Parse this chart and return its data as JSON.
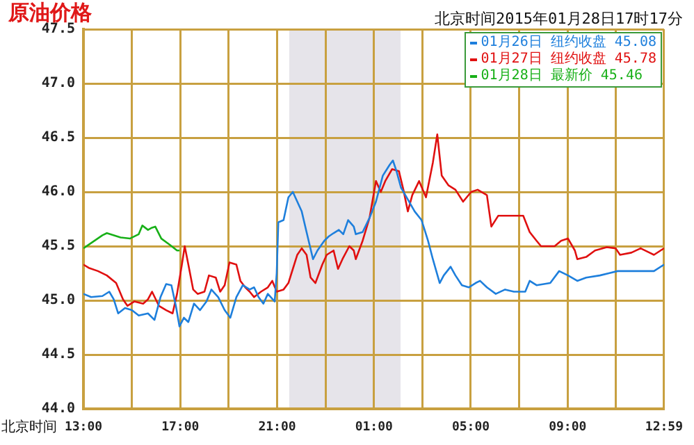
{
  "chart_data": {
    "type": "line",
    "title": "原油价格",
    "subtitle": "北京时间2015年01月28日17时17分",
    "xlabel": "北京时间",
    "xlim": [
      "2015-01-27T13:00",
      "2015-01-28T12:59"
    ],
    "xticks": [
      {
        "value": "2015-01-27T13:00",
        "label": "13:00"
      },
      {
        "value": "2015-01-27T15:00",
        "label": null
      },
      {
        "value": "2015-01-27T17:00",
        "label": "17:00"
      },
      {
        "value": "2015-01-27T19:00",
        "label": null
      },
      {
        "value": "2015-01-27T21:00",
        "label": "21:00"
      },
      {
        "value": "2015-01-27T23:00",
        "label": null
      },
      {
        "value": "2015-01-28T01:00",
        "label": "01:00"
      },
      {
        "value": "2015-01-28T03:00",
        "label": null
      },
      {
        "value": "2015-01-28T05:00",
        "label": "05:00"
      },
      {
        "value": "2015-01-28T07:00",
        "label": null
      },
      {
        "value": "2015-01-28T09:00",
        "label": "09:00"
      },
      {
        "value": "2015-01-28T11:00",
        "label": null
      },
      {
        "value": "2015-01-28T12:59",
        "label": "12:59"
      }
    ],
    "ylim": [
      44,
      47.5
    ],
    "yticks": [
      {
        "value": 44,
        "label": "44.0"
      },
      {
        "value": 44.5,
        "label": "44.5"
      },
      {
        "value": 45,
        "label": "45.0"
      },
      {
        "value": 45.5,
        "label": "45.5"
      },
      {
        "value": 46,
        "label": "46.0"
      },
      {
        "value": 46.5,
        "label": "46.5"
      },
      {
        "value": 47,
        "label": "47.0"
      },
      {
        "value": 47.5,
        "label": "47.5"
      }
    ],
    "grid": true,
    "legend": "top right",
    "marker": "none",
    "line_style": "solid",
    "bands": [
      {
        "axis": "x",
        "from": "2015-01-27T21:30",
        "to": "2015-01-28T02:06",
        "color": "#e6e4ea"
      }
    ],
    "series": [
      {
        "name": "01月26日 纽约收盘 45.08",
        "color": "#1e7fdc",
        "x": [
          "2015-01-27T13:00",
          "2015-01-27T13:19",
          "2015-01-27T13:47",
          "2015-01-27T14:04",
          "2015-01-27T14:15",
          "2015-01-27T14:26",
          "2015-01-27T14:43",
          "2015-01-27T15:00",
          "2015-01-27T15:17",
          "2015-01-27T15:40",
          "2015-01-27T15:56",
          "2015-01-27T16:11",
          "2015-01-27T16:25",
          "2015-01-27T16:38",
          "2015-01-27T16:49",
          "2015-01-27T16:58",
          "2015-01-27T17:09",
          "2015-01-27T17:20",
          "2015-01-27T17:34",
          "2015-01-27T17:49",
          "2015-01-27T18:05",
          "2015-01-27T18:17",
          "2015-01-27T18:34",
          "2015-01-27T18:50",
          "2015-01-27T19:04",
          "2015-01-27T19:19",
          "2015-01-27T19:35",
          "2015-01-27T19:52",
          "2015-01-27T20:03",
          "2015-01-27T20:14",
          "2015-01-27T20:26",
          "2015-01-27T20:37",
          "2015-01-27T20:54",
          "2015-01-27T20:59",
          "2015-01-27T21:03",
          "2015-01-27T21:16",
          "2015-01-27T21:28",
          "2015-01-27T21:39",
          "2015-01-27T21:50",
          "2015-01-27T22:01",
          "2015-01-27T22:13",
          "2015-01-27T22:29",
          "2015-01-27T22:40",
          "2015-01-27T22:57",
          "2015-01-27T23:08",
          "2015-01-27T23:20",
          "2015-01-27T23:33",
          "2015-01-27T23:44",
          "2015-01-27T23:56",
          "2015-01-28T00:10",
          "2015-01-28T00:15",
          "2015-01-28T00:32",
          "2015-01-28T00:49",
          "2015-01-28T01:05",
          "2015-01-28T01:22",
          "2015-01-28T01:39",
          "2015-01-28T01:47",
          "2015-01-28T01:56",
          "2015-01-28T02:07",
          "2015-01-28T02:24",
          "2015-01-28T02:41",
          "2015-01-28T02:58",
          "2015-01-28T03:14",
          "2015-01-28T03:26",
          "2015-01-28T03:43",
          "2015-01-28T03:53",
          "2015-01-28T04:10",
          "2015-01-28T04:22",
          "2015-01-28T04:38",
          "2015-01-28T04:55",
          "2015-01-28T05:12",
          "2015-01-28T05:23",
          "2015-01-28T05:40",
          "2015-01-28T06:02",
          "2015-01-28T06:25",
          "2015-01-28T06:47",
          "2015-01-28T07:15",
          "2015-01-28T07:26",
          "2015-01-28T07:43",
          "2015-01-28T08:17",
          "2015-01-28T08:39",
          "2015-01-28T09:01",
          "2015-01-28T09:24",
          "2015-01-28T09:46",
          "2015-01-28T10:20",
          "2015-01-28T10:42",
          "2015-01-28T11:04",
          "2015-01-28T11:49",
          "2015-01-28T12:34",
          "2015-01-28T12:59"
        ],
        "values": [
          45.06,
          45.03,
          45.04,
          45.08,
          45.01,
          44.88,
          44.93,
          44.91,
          44.86,
          44.88,
          44.82,
          45.03,
          45.15,
          45.14,
          44.95,
          44.76,
          44.84,
          44.8,
          44.97,
          44.91,
          44.99,
          45.1,
          45.03,
          44.91,
          44.84,
          45.03,
          45.14,
          45.1,
          45.12,
          45.03,
          44.97,
          45.06,
          44.99,
          45.25,
          45.72,
          45.74,
          45.95,
          46.0,
          45.91,
          45.82,
          45.63,
          45.38,
          45.46,
          45.55,
          45.59,
          45.62,
          45.65,
          45.61,
          45.74,
          45.68,
          45.61,
          45.63,
          45.76,
          45.91,
          46.15,
          46.25,
          46.29,
          46.19,
          46.04,
          45.93,
          45.82,
          45.74,
          45.55,
          45.38,
          45.16,
          45.23,
          45.31,
          45.23,
          45.14,
          45.12,
          45.16,
          45.18,
          45.12,
          45.06,
          45.1,
          45.08,
          45.08,
          45.18,
          45.14,
          45.16,
          45.27,
          45.23,
          45.18,
          45.21,
          45.23,
          45.25,
          45.27,
          45.27,
          45.27,
          45.33
        ]
      },
      {
        "name": "01月27日 纽约收盘 45.78",
        "color": "#e01010",
        "x": [
          "2015-01-27T13:00",
          "2015-01-27T13:13",
          "2015-01-27T13:36",
          "2015-01-27T13:58",
          "2015-01-27T14:21",
          "2015-01-27T14:38",
          "2015-01-27T14:49",
          "2015-01-27T15:06",
          "2015-01-27T15:28",
          "2015-01-27T15:40",
          "2015-01-27T15:50",
          "2015-01-27T16:07",
          "2015-01-27T16:25",
          "2015-01-27T16:41",
          "2015-01-27T16:52",
          "2015-01-27T17:04",
          "2015-01-27T17:11",
          "2015-01-27T17:20",
          "2015-01-27T17:32",
          "2015-01-27T17:43",
          "2015-01-27T18:00",
          "2015-01-27T18:11",
          "2015-01-27T18:28",
          "2015-01-27T18:39",
          "2015-01-27T18:50",
          "2015-01-27T19:02",
          "2015-01-27T19:19",
          "2015-01-27T19:29",
          "2015-01-27T19:41",
          "2015-01-27T19:52",
          "2015-01-27T20:03",
          "2015-01-27T20:20",
          "2015-01-27T20:37",
          "2015-01-27T20:48",
          "2015-01-27T20:59",
          "2015-01-27T21:16",
          "2015-01-27T21:28",
          "2015-01-27T21:39",
          "2015-01-27T21:50",
          "2015-01-27T22:01",
          "2015-01-27T22:13",
          "2015-01-27T22:23",
          "2015-01-27T22:35",
          "2015-01-27T22:52",
          "2015-01-27T23:03",
          "2015-01-27T23:20",
          "2015-01-27T23:31",
          "2015-01-27T23:42",
          "2015-01-27T23:59",
          "2015-01-28T00:10",
          "2015-01-28T00:15",
          "2015-01-28T00:32",
          "2015-01-28T00:49",
          "2015-01-28T01:05",
          "2015-01-28T01:17",
          "2015-01-28T01:28",
          "2015-01-28T01:45",
          "2015-01-28T02:02",
          "2015-01-28T02:13",
          "2015-01-28T02:24",
          "2015-01-28T02:35",
          "2015-01-28T02:52",
          "2015-01-28T03:09",
          "2015-01-28T03:26",
          "2015-01-28T03:37",
          "2015-01-28T03:48",
          "2015-01-28T04:05",
          "2015-01-28T04:22",
          "2015-01-28T04:41",
          "2015-01-28T05:01",
          "2015-01-28T05:17",
          "2015-01-28T05:40",
          "2015-01-28T05:51",
          "2015-01-28T06:08",
          "2015-01-28T06:36",
          "2015-01-28T07:10",
          "2015-01-28T07:26",
          "2015-01-28T07:43",
          "2015-01-28T07:54",
          "2015-01-28T08:28",
          "2015-01-28T08:44",
          "2015-01-28T09:01",
          "2015-01-28T09:18",
          "2015-01-28T09:24",
          "2015-01-28T09:46",
          "2015-01-28T10:08",
          "2015-01-28T10:37",
          "2015-01-28T10:59",
          "2015-01-28T11:10",
          "2015-01-28T11:38",
          "2015-01-28T12:01",
          "2015-01-28T12:23",
          "2015-01-28T12:34",
          "2015-01-28T12:59"
        ],
        "values": [
          45.33,
          45.3,
          45.27,
          45.23,
          45.16,
          45.01,
          44.95,
          44.99,
          44.97,
          45.01,
          45.08,
          44.95,
          44.91,
          44.88,
          45.06,
          45.33,
          45.5,
          45.33,
          45.1,
          45.06,
          45.08,
          45.23,
          45.21,
          45.08,
          45.14,
          45.35,
          45.33,
          45.18,
          45.12,
          45.08,
          45.03,
          45.08,
          45.12,
          45.18,
          45.08,
          45.1,
          45.16,
          45.29,
          45.42,
          45.48,
          45.42,
          45.21,
          45.16,
          45.33,
          45.42,
          45.46,
          45.29,
          45.38,
          45.5,
          45.46,
          45.38,
          45.55,
          45.76,
          46.1,
          46.0,
          46.1,
          46.21,
          46.19,
          46.02,
          45.82,
          45.97,
          46.1,
          45.95,
          46.27,
          46.53,
          46.15,
          46.06,
          46.02,
          45.91,
          46.0,
          46.02,
          45.97,
          45.68,
          45.78,
          45.78,
          45.78,
          45.63,
          45.55,
          45.5,
          45.5,
          45.55,
          45.57,
          45.46,
          45.38,
          45.4,
          45.46,
          45.49,
          45.48,
          45.42,
          45.44,
          45.48,
          45.44,
          45.42,
          45.48
        ]
      },
      {
        "name": "01月28日 最新价 45.46",
        "color": "#18b018",
        "x": [
          "2015-01-27T13:00",
          "2015-01-27T13:47",
          "2015-01-27T13:58",
          "2015-01-27T14:32",
          "2015-01-27T14:55",
          "2015-01-27T15:17",
          "2015-01-27T15:26",
          "2015-01-27T15:40",
          "2015-01-27T15:50",
          "2015-01-27T15:58",
          "2015-01-27T16:13",
          "2015-01-27T16:35",
          "2015-01-27T16:52",
          "2015-01-27T16:58"
        ],
        "values": [
          45.48,
          45.6,
          45.62,
          45.58,
          45.57,
          45.61,
          45.69,
          45.65,
          45.67,
          45.68,
          45.57,
          45.51,
          45.46,
          45.46
        ]
      }
    ]
  }
}
